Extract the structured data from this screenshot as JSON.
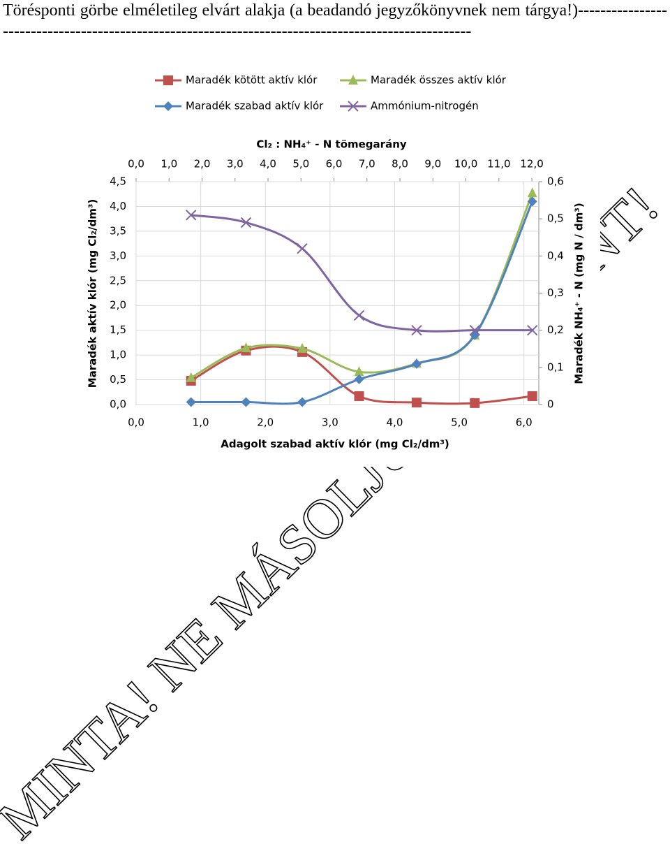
{
  "document": {
    "heading": "Törésponti görbe elméletileg elvárt alakja (a beadandó jegyzőkönyvnek nem tárgya!)----------------------------------------------------------------------------------------------------"
  },
  "watermark": [
    "MINTA! NE MÁSOLJU",
    "NT!"
  ],
  "chart_data": {
    "type": "line",
    "x_label": "Adagolt szabad aktív klór (mg Cl₂/dm³)",
    "x2_label": "Cl₂ : NH₄⁺ - N tömegarány",
    "y_label": "Maradék aktív klór (mg Cl₂/dm³)",
    "y2_label": "Maradék NH₄⁺ - N (mg N / dm³)",
    "x": [
      0.85,
      1.7,
      2.57,
      3.45,
      4.34,
      5.24,
      6.13
    ],
    "series": [
      {
        "name": "Maradék kötött aktív klór",
        "color": "#c0504d",
        "marker": "square",
        "values": [
          0.48,
          1.09,
          1.06,
          0.17,
          0.04,
          0.03,
          0.17
        ]
      },
      {
        "name": "Maradék összes aktív klór",
        "color": "#9bbb59",
        "marker": "triangle",
        "values": [
          0.54,
          1.14,
          1.13,
          0.66,
          0.83,
          1.4,
          4.27
        ]
      },
      {
        "name": "Maradék szabad aktív klór",
        "color": "#4f81bd",
        "marker": "diamond",
        "values": [
          0.05,
          0.05,
          0.05,
          0.51,
          0.82,
          1.4,
          4.1
        ]
      },
      {
        "name": "Ammónium-nitrogén",
        "color": "#8064a2",
        "marker": "x",
        "axis": "y2",
        "values": [
          0.51,
          0.49,
          0.42,
          0.24,
          0.2,
          0.2,
          0.2
        ]
      }
    ],
    "xlim": [
      0,
      6.23
    ],
    "xticks": [
      {
        "value": 0,
        "label": "0,0"
      },
      {
        "value": 1,
        "label": "1,0"
      },
      {
        "value": 2,
        "label": "2,0"
      },
      {
        "value": 3,
        "label": "3,0"
      },
      {
        "value": 4,
        "label": "4,0"
      },
      {
        "value": 5,
        "label": "5,0"
      },
      {
        "value": 6,
        "label": "6,0"
      }
    ],
    "x2lim": [
      0,
      12.21
    ],
    "x2ticks": [
      {
        "value": 0,
        "label": "0,0"
      },
      {
        "value": 1,
        "label": "1,0"
      },
      {
        "value": 2,
        "label": "2,0"
      },
      {
        "value": 3,
        "label": "3,0"
      },
      {
        "value": 4,
        "label": "4,0"
      },
      {
        "value": 5,
        "label": "5,0"
      },
      {
        "value": 6,
        "label": "6,0"
      },
      {
        "value": 7,
        "label": "7,0"
      },
      {
        "value": 8,
        "label": "8,0"
      },
      {
        "value": 9,
        "label": "9,0"
      },
      {
        "value": 10,
        "label": "10,0"
      },
      {
        "value": 11,
        "label": "11,0"
      },
      {
        "value": 12,
        "label": "12,0"
      }
    ],
    "ylim": [
      0,
      4.5
    ],
    "yticks": [
      {
        "value": 0,
        "label": "0,0"
      },
      {
        "value": 0.5,
        "label": "0,5"
      },
      {
        "value": 1,
        "label": "1,0"
      },
      {
        "value": 1.5,
        "label": "1,5"
      },
      {
        "value": 2,
        "label": "2,0"
      },
      {
        "value": 2.5,
        "label": "2,5"
      },
      {
        "value": 3,
        "label": "3,0"
      },
      {
        "value": 3.5,
        "label": "3,5"
      },
      {
        "value": 4,
        "label": "4,0"
      },
      {
        "value": 4.5,
        "label": "4,5"
      }
    ],
    "y2lim": [
      0,
      0.6
    ],
    "y2ticks": [
      0,
      {
        "value": 0.1,
        "label": "0,1"
      },
      {
        "value": 0.2,
        "label": "0,2"
      },
      {
        "value": 0.3,
        "label": "0,3"
      },
      {
        "value": 0.4,
        "label": "0,4"
      },
      {
        "value": 0.5,
        "label": "0,5"
      },
      {
        "value": 0.6,
        "label": "0,6"
      }
    ],
    "grid": true,
    "legend": "top"
  }
}
